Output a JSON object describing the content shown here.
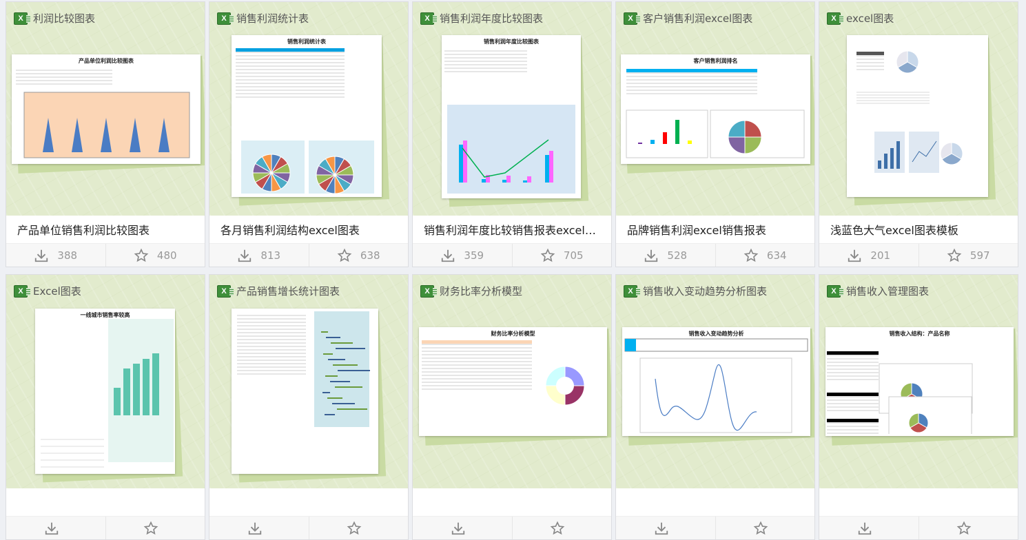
{
  "cards": [
    {
      "category": "利润比较图表",
      "title": "产品单位销售利润比较图表",
      "downloads": "388",
      "favorites": "480",
      "sheet_title": "产品单位利润比较图表",
      "chart": "cone"
    },
    {
      "category": "销售利润统计表",
      "title": "各月销售利润结构excel图表",
      "downloads": "813",
      "favorites": "638",
      "sheet_title": "销售利润统计表",
      "chart": "pie2"
    },
    {
      "category": "销售利润年度比较图表",
      "title": "销售利润年度比较销售报表excel图表",
      "downloads": "359",
      "favorites": "705",
      "sheet_title": "销售利润年度比较图表",
      "chart": "barline"
    },
    {
      "category": "客户销售利润excel图表",
      "title": "品牌销售利润excel销售报表",
      "downloads": "528",
      "favorites": "634",
      "sheet_title": "客户销售利润排名",
      "chart": "barpie"
    },
    {
      "category": "excel图表",
      "title": "浅蓝色大气excel图表模板",
      "downloads": "201",
      "favorites": "597",
      "sheet_title": "",
      "chart": "light"
    },
    {
      "category": "Excel图表",
      "title": "",
      "downloads": "",
      "favorites": "",
      "sheet_title": "一线城市销售率较高",
      "chart": "teal"
    },
    {
      "category": "产品销售增长统计图表",
      "title": "",
      "downloads": "",
      "favorites": "",
      "sheet_title": "",
      "chart": "range"
    },
    {
      "category": "财务比率分析模型",
      "title": "",
      "downloads": "",
      "favorites": "",
      "sheet_title": "财务比率分析模型",
      "chart": "donut"
    },
    {
      "category": "销售收入变动趋势分析图表",
      "title": "",
      "downloads": "",
      "favorites": "",
      "sheet_title": "销售收入变动趋势分析",
      "chart": "line"
    },
    {
      "category": "销售收入管理图表",
      "title": "",
      "downloads": "",
      "favorites": "",
      "sheet_title": "销售收入结构：产品名称",
      "chart": "pies"
    }
  ],
  "icons": {
    "file": "excel-icon",
    "download": "download-icon",
    "favorite": "star-icon"
  },
  "colors": {
    "page_bg": "#eef0f4",
    "thumb_bg": "#e2ebcd",
    "excel_green": "#3f8f3a"
  }
}
